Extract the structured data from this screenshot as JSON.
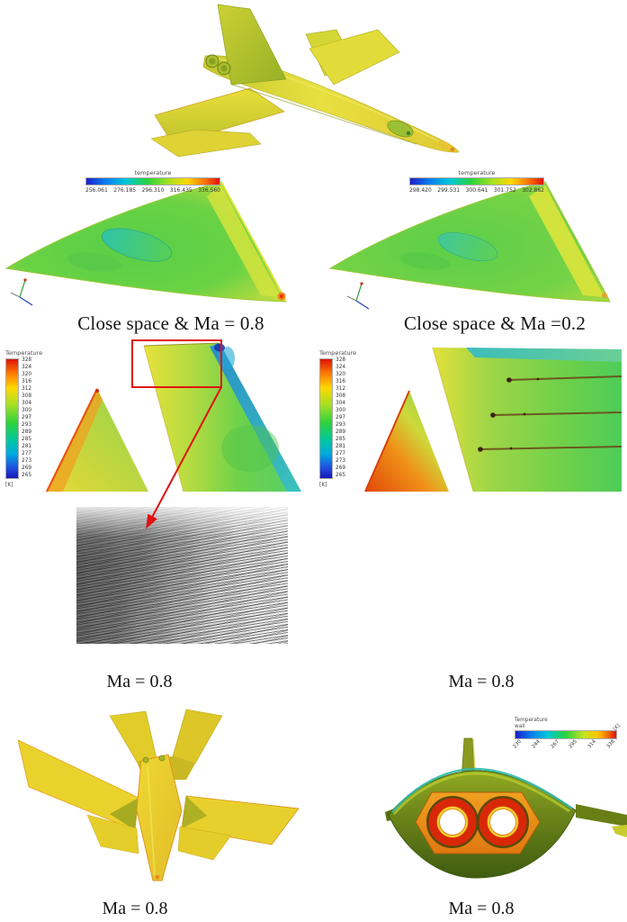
{
  "figure": {
    "kind": "CFD surface-temperature figure of a fighter aircraft",
    "panels": {
      "close_space_left": {
        "caption": "Close space & Ma = 0.8",
        "colorbar": {
          "title": "temperature",
          "ticks": [
            "256.061",
            "276.185",
            "296.310",
            "316.435",
            "336.560"
          ]
        }
      },
      "close_space_right": {
        "caption": "Close space &  Ma =0.2",
        "colorbar": {
          "title": "temperature",
          "ticks": [
            "298.420",
            "299.531",
            "300.641",
            "301.752",
            "302.862"
          ]
        }
      },
      "wing_left": {
        "caption": "Ma = 0.8",
        "colorbar": {
          "title": "Temperature",
          "unit": "[K]",
          "ticks": [
            "328",
            "324",
            "320",
            "316",
            "312",
            "308",
            "304",
            "300",
            "297",
            "293",
            "289",
            "285",
            "281",
            "277",
            "273",
            "269",
            "265"
          ]
        }
      },
      "wing_right": {
        "caption": "Ma = 0.8",
        "colorbar": {
          "title": "Temperature",
          "unit": "[K]",
          "ticks": [
            "328",
            "324",
            "320",
            "316",
            "312",
            "308",
            "304",
            "300",
            "297",
            "293",
            "289",
            "285",
            "281",
            "277",
            "273",
            "269",
            "265"
          ]
        }
      },
      "bottom_left": {
        "caption": "Ma = 0.8"
      },
      "bottom_right": {
        "caption": "Ma = 0.8",
        "colorbar": {
          "title": "Temperature",
          "subtitle": "wall",
          "unit": "[K]",
          "ticks": [
            "230",
            "244",
            "267",
            "295",
            "314",
            "338"
          ]
        }
      }
    },
    "colors": {
      "annotation_red": "#e01010",
      "colormap_low": "#1f1fc8",
      "colormap_mid": "#2ad23c",
      "colormap_high": "#dd1208",
      "aircraft_yellow": "#e6d836",
      "aircraft_green": "#5ccf4a",
      "engine_panel_orange": "#f09018",
      "engine_ring_red": "#d82808"
    }
  }
}
